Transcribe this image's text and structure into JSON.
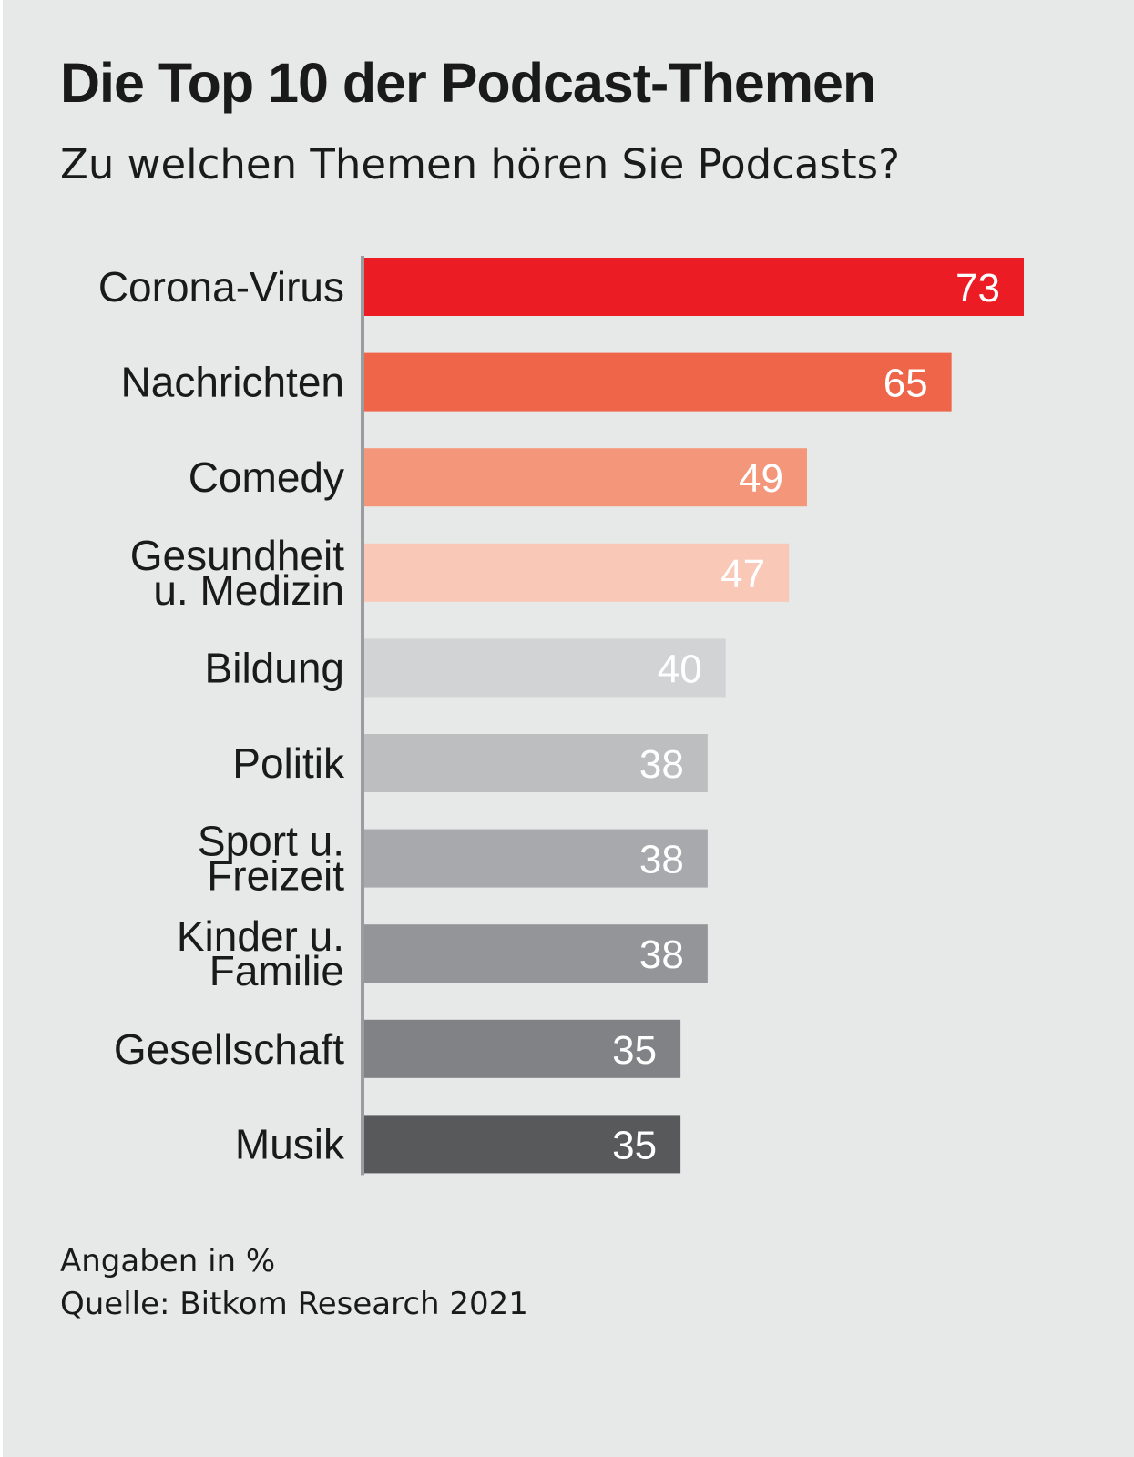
{
  "chart_data": {
    "type": "bar",
    "orientation": "horizontal",
    "title": "Die Top 10 der Podcast-Themen",
    "subtitle": "Zu welchen Themen hören Sie Podcasts?",
    "categories": [
      [
        "Corona-Virus"
      ],
      [
        "Nachrichten"
      ],
      [
        "Comedy"
      ],
      [
        "Gesundheit",
        "u. Medizin"
      ],
      [
        "Bildung"
      ],
      [
        "Politik"
      ],
      [
        "Sport u.",
        "Freizeit"
      ],
      [
        "Kinder u.",
        "Familie"
      ],
      [
        "Gesellschaft"
      ],
      [
        "Musik"
      ]
    ],
    "values": [
      73,
      65,
      49,
      47,
      40,
      38,
      38,
      38,
      35,
      35
    ],
    "data_labels": [
      "73",
      "65",
      "49",
      "47",
      "40",
      "38",
      "38",
      "38",
      "35",
      "35"
    ],
    "colors": [
      "#ec1c24",
      "#ef6549",
      "#f4967a",
      "#fac8b6",
      "#d1d3d4",
      "#bcbec0",
      "#a7a9ac",
      "#939598",
      "#808285",
      "#58595b"
    ],
    "unit": "%",
    "xlim": [
      0,
      73
    ],
    "xlabel": "",
    "ylabel": "",
    "grid": false,
    "legend": "none"
  },
  "footer": {
    "note": "Angaben in %",
    "source": "Quelle: Bitkom Research 2021"
  },
  "colors": {
    "background": "#e7e8e8",
    "axis": "#9a9c9f",
    "text": "#1a1a1a"
  }
}
